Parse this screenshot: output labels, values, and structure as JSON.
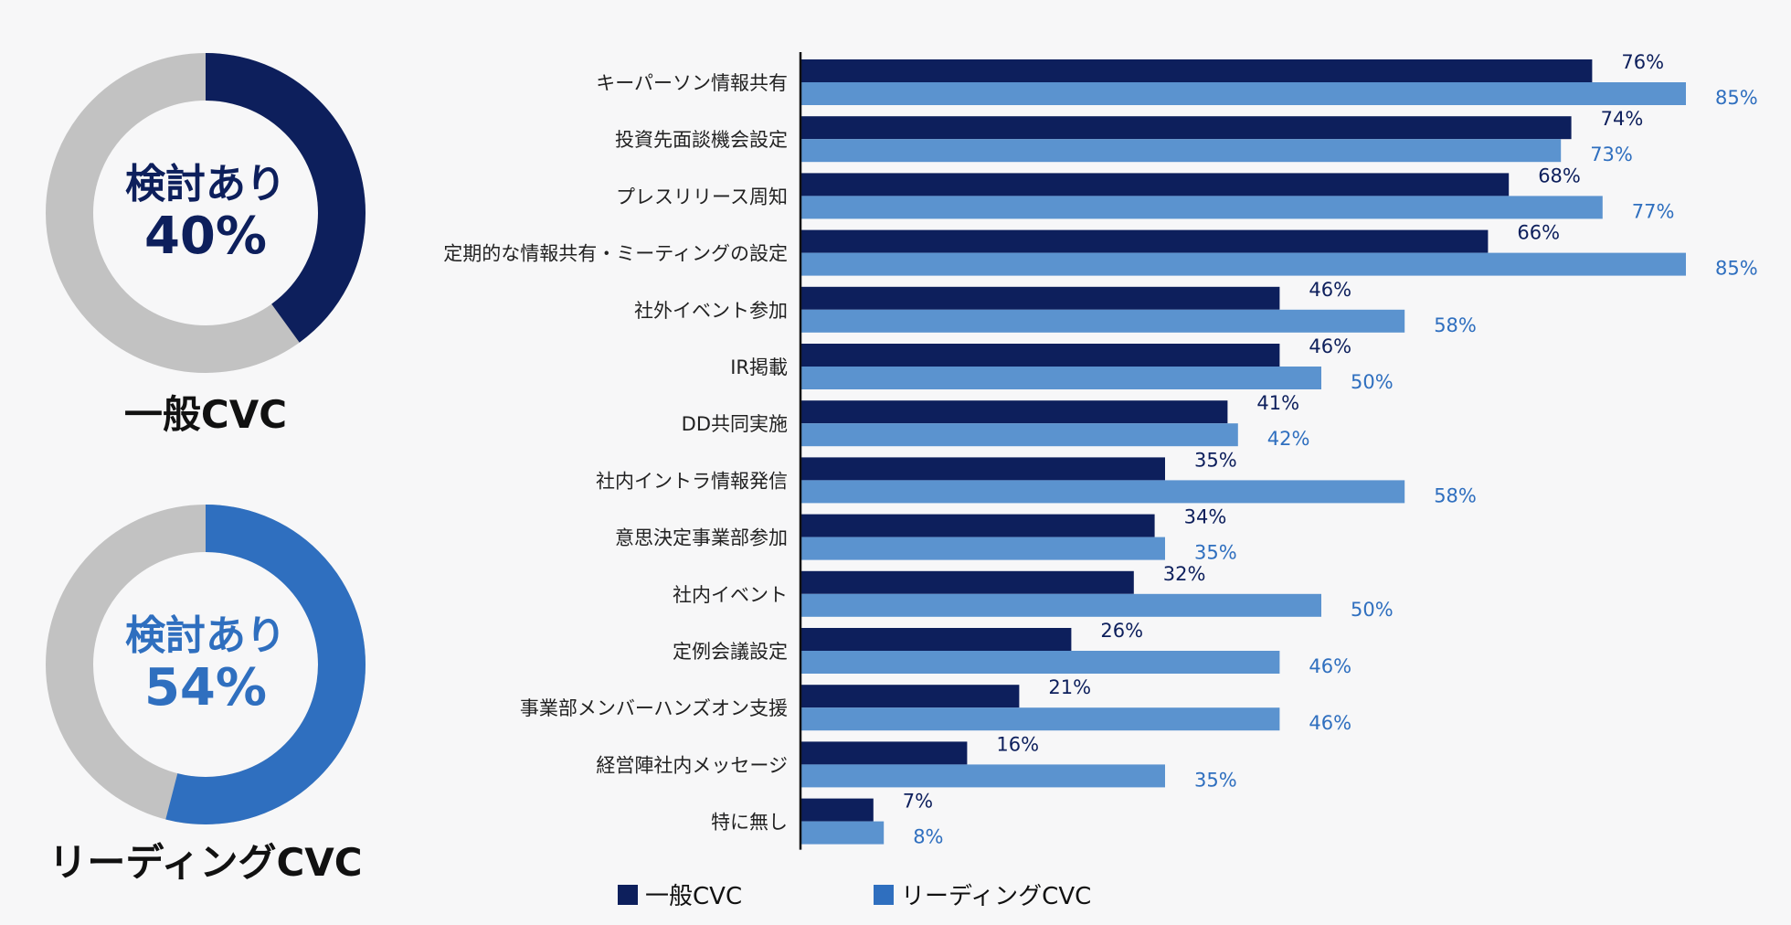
{
  "colors": {
    "general": "#0d1f5c",
    "leading": "#5b93cf",
    "leading_donut": "#2f6fbf",
    "donut_rest": "#c2c2c2",
    "axis": "#111111",
    "category_text": "#222222"
  },
  "donuts": [
    {
      "center_label": "検討あり",
      "center_value": "40%",
      "caption": "一般CVC",
      "fraction": 0.4
    },
    {
      "center_label": "検討あり",
      "center_value": "54%",
      "caption": "リーディングCVC",
      "fraction": 0.54
    }
  ],
  "chart_data": {
    "type": "bar",
    "orientation": "horizontal",
    "categories": [
      "キーパーソン情報共有",
      "投資先面談機会設定",
      "プレスリリース周知",
      "定期的な情報共有・ミーティングの設定",
      "社外イベント参加",
      "IR掲載",
      "DD共同実施",
      "社内イントラ情報発信",
      "意思決定事業部参加",
      "社内イベント",
      "定例会議設定",
      "事業部メンバーハンズオン支援",
      "経営陣社内メッセージ",
      "特に無し"
    ],
    "series": [
      {
        "name": "一般CVC",
        "values": [
          76,
          74,
          68,
          66,
          46,
          46,
          41,
          35,
          34,
          32,
          26,
          21,
          16,
          7
        ],
        "labels": [
          "76%",
          "74%",
          "68%",
          "66%",
          "46%",
          "46%",
          "41%",
          "35%",
          "34%",
          "32%",
          "26%",
          "21%",
          "16%",
          "7%"
        ]
      },
      {
        "name": "リーディングCVC",
        "values": [
          85,
          73,
          77,
          85,
          58,
          50,
          42,
          58,
          35,
          50,
          46,
          46,
          35,
          8
        ],
        "labels": [
          "85%",
          "73%",
          "77%",
          "85%",
          "58%",
          "50%",
          "42%",
          "58%",
          "35%",
          "50%",
          "46%",
          "46%",
          "35%",
          "8%"
        ]
      }
    ],
    "xlim": [
      0,
      85
    ],
    "legend": "bottom"
  }
}
